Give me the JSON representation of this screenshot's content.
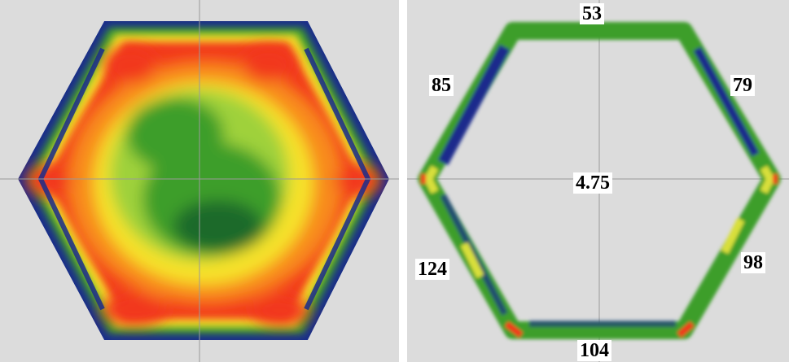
{
  "left_panel": {
    "colors": {
      "background": "#dcdcdc",
      "outer_blue": "#1a2c8c",
      "red": "#f2391c",
      "orange": "#f88a1a",
      "yellow": "#f6e22b",
      "light_green": "#9fd13a",
      "green": "#3e9e2c",
      "dark_green": "#1b6a2a",
      "crosshair": "#9a9a9a"
    }
  },
  "right_panel": {
    "labels": {
      "top": "53",
      "upper_left": "85",
      "upper_right": "79",
      "center": "4.75",
      "lower_left": "124",
      "lower_right": "98",
      "bottom": "104"
    },
    "colors": {
      "background": "#dcdcdc",
      "ring_green": "#3e9e2c",
      "ring_blue": "#1a2c8c",
      "ring_yellow": "#d8df3a",
      "ring_red": "#f2391c",
      "crosshair": "#9a9a9a",
      "label_box": "#ffffff",
      "label_text": "#000000"
    }
  }
}
